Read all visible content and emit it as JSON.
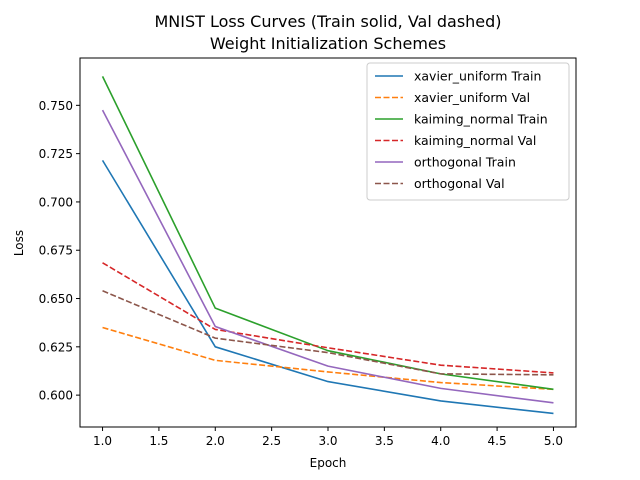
{
  "chart_data": {
    "type": "line",
    "title_lines": [
      "MNIST Loss Curves (Train solid, Val dashed)",
      "Weight Initialization Schemes"
    ],
    "xlabel": "Epoch",
    "ylabel": "Loss",
    "xlim": [
      0.8,
      5.2
    ],
    "ylim": [
      0.5835,
      0.7745
    ],
    "xticks": [
      1.0,
      1.5,
      2.0,
      2.5,
      3.0,
      3.5,
      4.0,
      4.5,
      5.0
    ],
    "xtick_labels": [
      "1.0",
      "1.5",
      "2.0",
      "2.5",
      "3.0",
      "3.5",
      "4.0",
      "4.5",
      "5.0"
    ],
    "yticks": [
      0.6,
      0.625,
      0.65,
      0.675,
      0.7,
      0.725,
      0.75
    ],
    "ytick_labels": [
      "0.600",
      "0.625",
      "0.650",
      "0.675",
      "0.700",
      "0.725",
      "0.750"
    ],
    "grid": false,
    "legend_position": "top-right",
    "x": [
      1,
      2,
      3,
      4,
      5
    ],
    "series": [
      {
        "name": "xavier_uniform Train",
        "values": [
          0.7215,
          0.625,
          0.607,
          0.597,
          0.5905
        ],
        "color": "#1f77b4",
        "dashed": false
      },
      {
        "name": "xavier_uniform Val",
        "values": [
          0.635,
          0.618,
          0.612,
          0.6065,
          0.603
        ],
        "color": "#ff7f0e",
        "dashed": true
      },
      {
        "name": "kaiming_normal Train",
        "values": [
          0.765,
          0.645,
          0.623,
          0.611,
          0.603
        ],
        "color": "#2ca02c",
        "dashed": false
      },
      {
        "name": "kaiming_normal Val",
        "values": [
          0.6685,
          0.634,
          0.6245,
          0.6155,
          0.6115
        ],
        "color": "#d62728",
        "dashed": true
      },
      {
        "name": "orthogonal Train",
        "values": [
          0.7475,
          0.6355,
          0.615,
          0.6035,
          0.596
        ],
        "color": "#9467bd",
        "dashed": false
      },
      {
        "name": "orthogonal Val",
        "values": [
          0.654,
          0.6295,
          0.622,
          0.611,
          0.6105
        ],
        "color": "#8c564b",
        "dashed": true
      }
    ]
  }
}
